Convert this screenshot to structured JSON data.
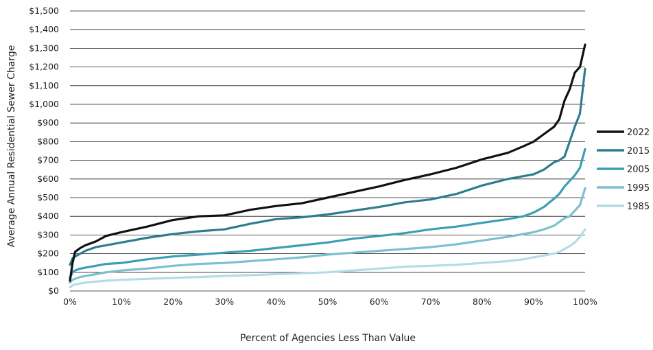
{
  "chart_data": {
    "type": "line",
    "xlabel": "Percent of Agencies Less Than Value",
    "ylabel": "Average Annual Residential Sewer Charge",
    "xlim": [
      0,
      100
    ],
    "ylim": [
      0,
      1500
    ],
    "grid": true,
    "legend_position": "right",
    "x_ticks": [
      "0%",
      "10%",
      "20%",
      "30%",
      "40%",
      "50%",
      "60%",
      "70%",
      "80%",
      "90%",
      "100%"
    ],
    "y_ticks": [
      "$0",
      "$100",
      "$200",
      "$300",
      "$400",
      "$500",
      "$600",
      "$700",
      "$800",
      "$900",
      "$1,000",
      "$1,100",
      "$1,200",
      "$1,300",
      "$1,400",
      "$1,500"
    ],
    "x": [
      0,
      0.5,
      1,
      2,
      3,
      5,
      7,
      10,
      15,
      20,
      25,
      30,
      35,
      40,
      45,
      50,
      55,
      60,
      65,
      70,
      75,
      80,
      85,
      88,
      90,
      92,
      94,
      95,
      96,
      97,
      98,
      99,
      100
    ],
    "series": [
      {
        "name": "2022",
        "color": "#111111",
        "values": [
          55,
          150,
          210,
          230,
          245,
          265,
          295,
          315,
          345,
          380,
          400,
          405,
          435,
          455,
          470,
          500,
          530,
          560,
          595,
          625,
          660,
          705,
          740,
          775,
          800,
          840,
          880,
          920,
          1020,
          1080,
          1170,
          1200,
          1320
        ]
      },
      {
        "name": "2015",
        "color": "#2e7d8e",
        "values": [
          140,
          175,
          185,
          200,
          215,
          235,
          245,
          260,
          285,
          305,
          320,
          330,
          360,
          385,
          395,
          410,
          430,
          450,
          475,
          490,
          520,
          565,
          600,
          615,
          625,
          650,
          690,
          700,
          720,
          800,
          880,
          950,
          1190
        ]
      },
      {
        "name": "2005",
        "color": "#3a9fb5",
        "values": [
          70,
          100,
          110,
          120,
          125,
          135,
          145,
          150,
          170,
          185,
          195,
          205,
          215,
          230,
          245,
          260,
          280,
          295,
          310,
          330,
          345,
          365,
          385,
          400,
          420,
          450,
          495,
          520,
          560,
          590,
          620,
          660,
          760
        ]
      },
      {
        "name": "1995",
        "color": "#7cc0d0",
        "values": [
          45,
          60,
          65,
          75,
          80,
          90,
          100,
          110,
          120,
          135,
          145,
          150,
          160,
          170,
          180,
          195,
          205,
          215,
          225,
          235,
          250,
          270,
          290,
          305,
          315,
          330,
          350,
          370,
          390,
          400,
          430,
          460,
          550
        ]
      },
      {
        "name": "1985",
        "color": "#b4dce6",
        "values": [
          20,
          30,
          35,
          40,
          45,
          50,
          55,
          60,
          65,
          70,
          75,
          80,
          85,
          90,
          95,
          100,
          110,
          120,
          130,
          135,
          140,
          150,
          160,
          170,
          180,
          190,
          200,
          210,
          225,
          240,
          260,
          290,
          330
        ]
      }
    ]
  }
}
